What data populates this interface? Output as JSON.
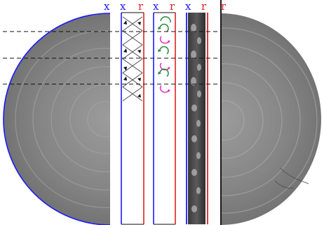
{
  "labels": [
    {
      "text": "x",
      "color": "#1a1aff"
    },
    {
      "text": "x",
      "color": "#1a1aff"
    },
    {
      "text": "r",
      "color": "#e02020"
    },
    {
      "text": "x",
      "color": "#1a1aff"
    },
    {
      "text": "r",
      "color": "#e02020"
    },
    {
      "text": "x",
      "color": "#1a1aff"
    },
    {
      "text": "r",
      "color": "#e02020"
    },
    {
      "text": "r",
      "color": "#e02020"
    }
  ],
  "colors": {
    "axis_x": "#1a1aff",
    "axis_r": "#e02020",
    "vortex_green": "#2a8a3a",
    "vortex_magenta": "#e030c8",
    "dashed_line": "#111111",
    "disk_gray": "#8f8f8f"
  },
  "dashed_line_count": 3,
  "vortex_pairs": 3
}
